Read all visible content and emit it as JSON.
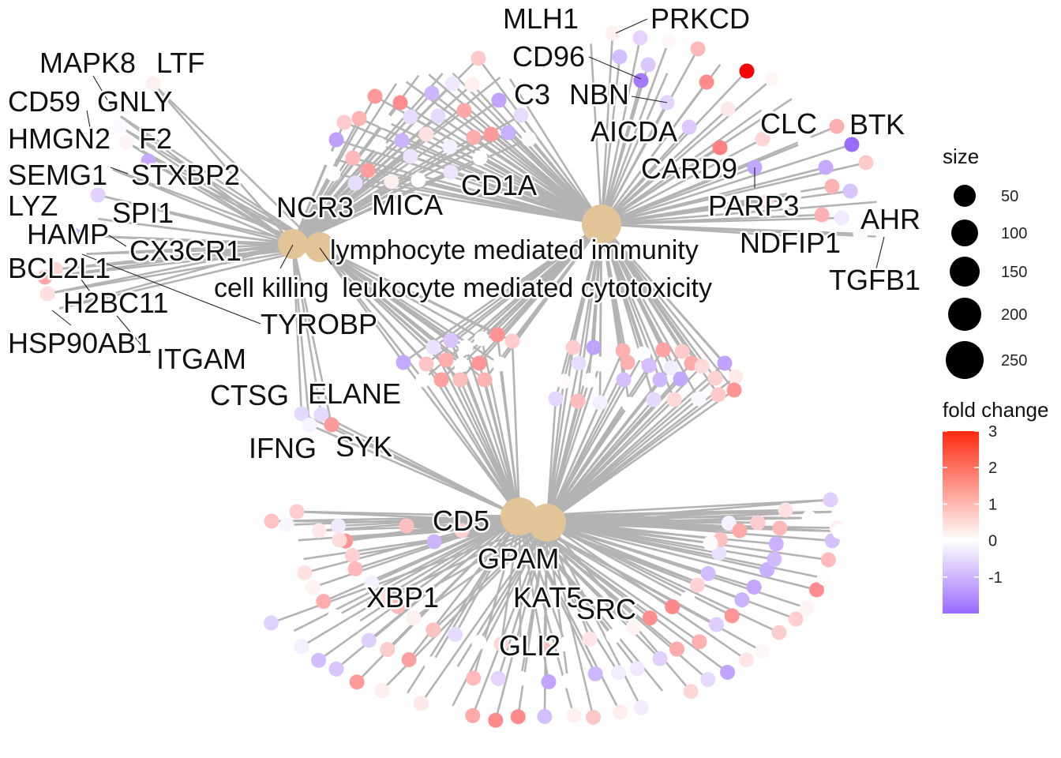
{
  "diagram": {
    "type": "cnetplot",
    "colors": {
      "edge": "#b3b3b3",
      "category_node": "#e2c496",
      "fc_low": "#9a6bff",
      "fc_mid": "#ffffff",
      "fc_high": "#ff0000"
    },
    "categories": [
      {
        "id": "lymphocyte",
        "label": "lymphocyte mediated immunity",
        "size": 250
      },
      {
        "id": "cytotoxicity",
        "label": "leukocyte mediated cytotoxicity",
        "size": 150
      },
      {
        "id": "killing",
        "label": "cell killing",
        "size": 150
      },
      {
        "id": "tcell_a",
        "label": "",
        "size": 200
      },
      {
        "id": "tcell_b",
        "label": "",
        "size": 220
      }
    ],
    "gene_labels": [
      "MLH1",
      "PRKCD",
      "CD96",
      "NBN",
      "C3",
      "AICDA",
      "CLC",
      "BTK",
      "CARD9",
      "CD1A",
      "MICA",
      "PARP3",
      "AHR",
      "NDFIP1",
      "TGFB1",
      "NCR3",
      "MAPK8",
      "LTF",
      "CD59",
      "GNLY",
      "HMGN2",
      "F2",
      "SEMG1",
      "STXBP2",
      "LYZ",
      "SPI1",
      "HAMP",
      "CX3CR1",
      "BCL2L1",
      "H2BC11",
      "HSP90AB1",
      "ITGAM",
      "TYROBP",
      "CTSG",
      "ELANE",
      "IFNG",
      "SYK",
      "CD5",
      "GPAM",
      "XBP1",
      "KAT5",
      "SRC",
      "GLI2"
    ],
    "legend": {
      "size_title": "size",
      "size_values": [
        "50",
        "100",
        "150",
        "200",
        "250"
      ],
      "color_title": "fold change",
      "color_range": [
        -2,
        3
      ],
      "color_ticks": [
        "3",
        "2",
        "1",
        "0",
        "-1"
      ]
    }
  }
}
